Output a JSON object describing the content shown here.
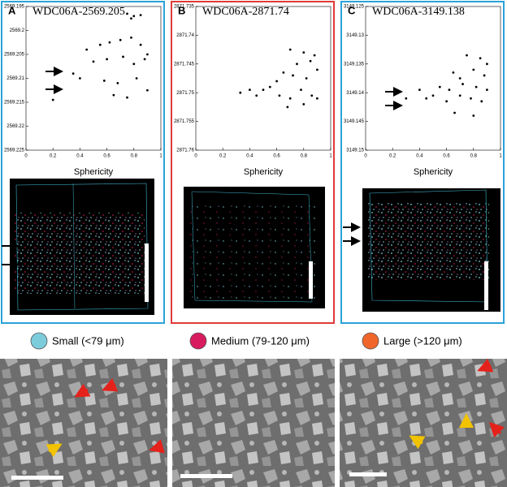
{
  "chart_data": [
    {
      "type": "scatter",
      "letter": "A",
      "title": "WDC06A-2569.205",
      "xlabel": "Sphericity",
      "color": "#000000",
      "frame_color": "#2aa3d8",
      "xlim": [
        0,
        1
      ],
      "xticks": [
        0,
        0.2,
        0.4,
        0.6,
        0.8,
        1
      ],
      "ylim": [
        2569.195,
        2569.225
      ],
      "y_reversed": true,
      "yticks": [
        2569.195,
        2569.2,
        2569.205,
        2569.21,
        2569.215,
        2569.22,
        2569.225
      ],
      "x": [
        0.75,
        0.8,
        0.85,
        0.78,
        0.45,
        0.55,
        0.62,
        0.7,
        0.78,
        0.85,
        0.9,
        0.5,
        0.6,
        0.72,
        0.8,
        0.88,
        0.4,
        0.58,
        0.68,
        0.82,
        0.9,
        0.35,
        0.65,
        0.75,
        0.2
      ],
      "values": [
        2569.1965,
        2569.197,
        2569.1968,
        2569.1975,
        2569.204,
        2569.203,
        2569.2025,
        2569.202,
        2569.2015,
        2569.203,
        2569.205,
        2569.2065,
        2569.206,
        2569.2055,
        2569.207,
        2569.206,
        2569.21,
        2569.2105,
        2569.211,
        2569.21,
        2569.2125,
        2569.209,
        2569.2135,
        2569.214,
        2569.2145
      ]
    },
    {
      "type": "scatter",
      "letter": "B",
      "title": "WDC06A-2871.74",
      "xlabel": "Sphericity",
      "color": "#000000",
      "frame_color": "#e03a3a",
      "xlim": [
        0,
        1
      ],
      "xticks": [
        0,
        0.2,
        0.4,
        0.6,
        0.8,
        1
      ],
      "ylim": [
        2871.735,
        2871.76
      ],
      "y_reversed": true,
      "yticks": [
        2871.735,
        2871.74,
        2871.745,
        2871.75,
        2871.755,
        2871.76
      ],
      "x": [
        0.7,
        0.8,
        0.88,
        0.75,
        0.85,
        0.65,
        0.9,
        0.6,
        0.72,
        0.82,
        0.5,
        0.55,
        0.62,
        0.7,
        0.78,
        0.86,
        0.9,
        0.45,
        0.4,
        0.33,
        0.68,
        0.8
      ],
      "values": [
        2871.7425,
        2871.743,
        2871.7435,
        2871.745,
        2871.7445,
        2871.7465,
        2871.746,
        2871.748,
        2871.747,
        2871.7475,
        2871.7495,
        2871.749,
        2871.7505,
        2871.751,
        2871.7495,
        2871.7505,
        2871.751,
        2871.7505,
        2871.7495,
        2871.75,
        2871.7525,
        2871.752
      ]
    },
    {
      "type": "scatter",
      "letter": "C",
      "title": "WDC06A-3149.138",
      "xlabel": "Sphericity",
      "color": "#000000",
      "frame_color": "#2aa3d8",
      "xlim": [
        0,
        1
      ],
      "xticks": [
        0,
        0.2,
        0.4,
        0.6,
        0.8,
        1
      ],
      "ylim": [
        3149.125,
        3149.15
      ],
      "y_reversed": true,
      "yticks": [
        3149.125,
        3149.13,
        3149.135,
        3149.14,
        3149.145,
        3149.15
      ],
      "x": [
        0.75,
        0.85,
        0.9,
        0.65,
        0.8,
        0.7,
        0.88,
        0.55,
        0.62,
        0.72,
        0.82,
        0.9,
        0.45,
        0.5,
        0.6,
        0.7,
        0.78,
        0.86,
        0.4,
        0.3,
        0.66,
        0.8
      ],
      "values": [
        3149.1335,
        3149.134,
        3149.135,
        3149.1365,
        3149.136,
        3149.1375,
        3149.137,
        3149.139,
        3149.1395,
        3149.1385,
        3149.139,
        3149.1395,
        3149.141,
        3149.1405,
        3149.1415,
        3149.1405,
        3149.141,
        3149.1415,
        3149.1395,
        3149.141,
        3149.1435,
        3149.144
      ]
    }
  ],
  "legend": [
    {
      "label": "Small (<79 μm)",
      "color": "#7cccdc"
    },
    {
      "label": "Medium (79-120 μm)",
      "color": "#d81b5e"
    },
    {
      "label": "Large (>120 μm)",
      "color": "#f0662a"
    }
  ]
}
